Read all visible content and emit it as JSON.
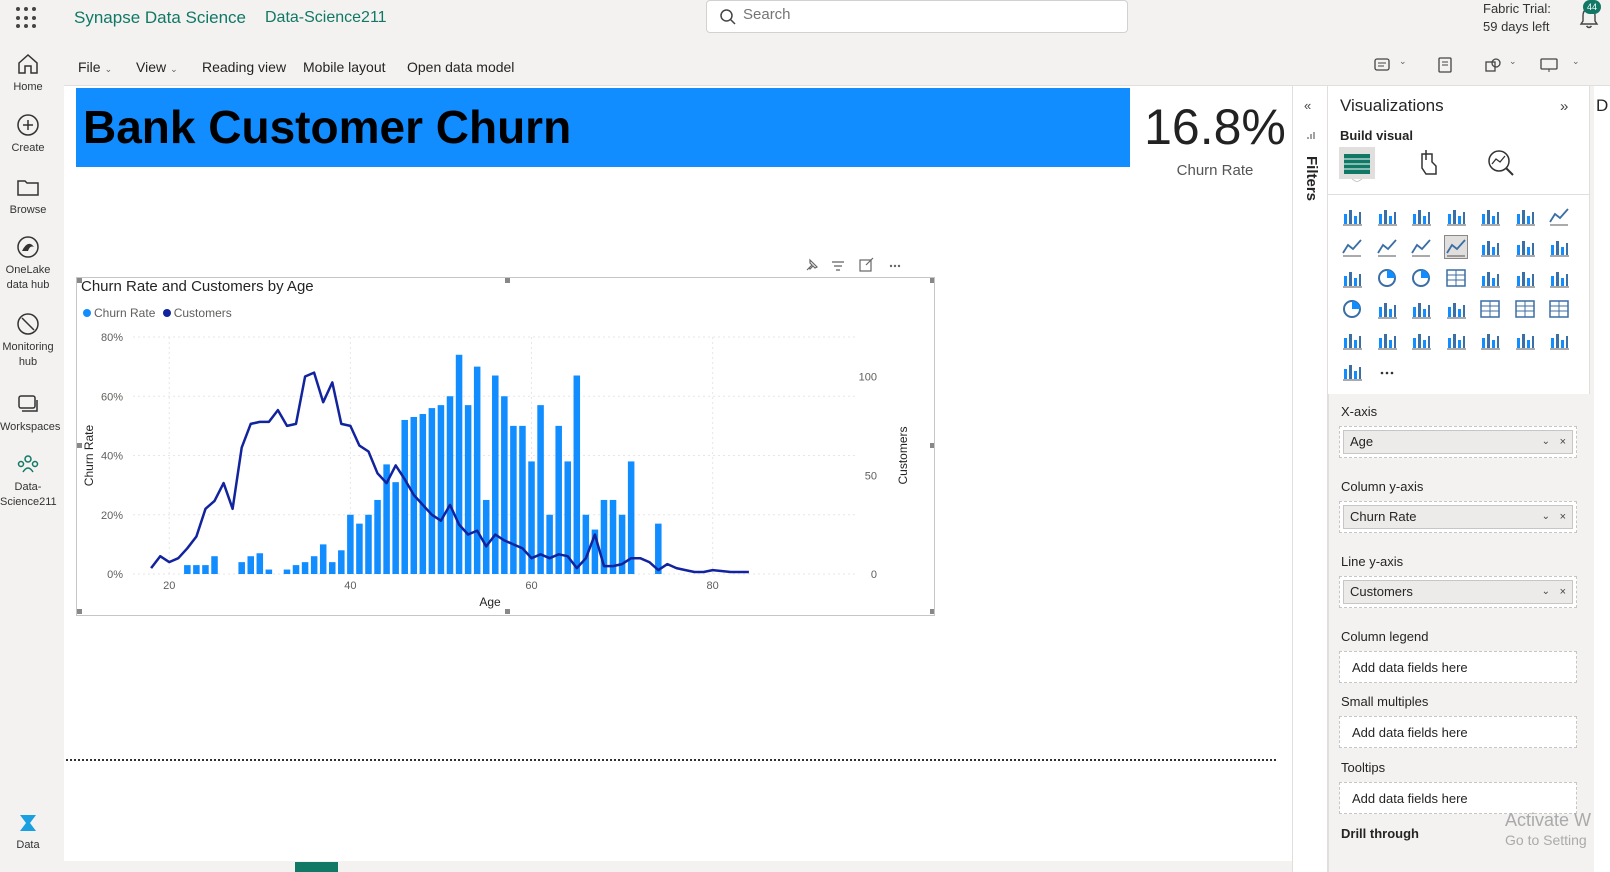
{
  "header": {
    "app_title": "Synapse Data Science",
    "workspace": "Data-Science211",
    "search_placeholder": "Search",
    "trial_line1": "Fabric Trial:",
    "trial_line2": "59 days left",
    "notification_count": "44"
  },
  "leftnav": {
    "items": [
      {
        "label": "Home",
        "icon": "home-icon"
      },
      {
        "label": "Create",
        "icon": "plus-circle-icon"
      },
      {
        "label": "Browse",
        "icon": "folder-icon"
      },
      {
        "label": "OneLake data hub",
        "icon": "onelake-icon"
      },
      {
        "label": "Monitoring hub",
        "icon": "monitor-icon"
      },
      {
        "label": "Workspaces",
        "icon": "workspaces-icon"
      },
      {
        "label": "Data-Science211",
        "icon": "workspace-people-icon"
      }
    ],
    "bottom_label": "Data"
  },
  "ribbon": {
    "file": "File",
    "view": "View",
    "reading_view": "Reading view",
    "mobile_layout": "Mobile layout",
    "open_data_model": "Open data model"
  },
  "report": {
    "banner_title": "Bank Customer Churn",
    "kpi_value": "16.8%",
    "kpi_label": "Churn Rate",
    "banner_color": "#118dff"
  },
  "chart_data": {
    "type": "bar+line",
    "title": "Churn Rate and Customers by Age",
    "xlabel": "Age",
    "ylabel": "Churn Rate",
    "y2label": "Customers",
    "legend": [
      {
        "name": "Churn Rate",
        "color": "#118dff"
      },
      {
        "name": "Customers",
        "color": "#12239e"
      }
    ],
    "legend_position": "top-left",
    "x_ticks": [
      "20",
      "40",
      "60",
      "80"
    ],
    "y_ticks": [
      "0%",
      "20%",
      "40%",
      "60%",
      "80%"
    ],
    "y2_ticks": [
      "0",
      "50",
      "100"
    ],
    "xlim": [
      16,
      86
    ],
    "ylim": [
      0,
      0.8
    ],
    "y2lim": [
      0,
      120
    ],
    "grid": true,
    "bars": [
      {
        "x": 22,
        "y": 0.03
      },
      {
        "x": 23,
        "y": 0.03
      },
      {
        "x": 24,
        "y": 0.03
      },
      {
        "x": 25,
        "y": 0.06
      },
      {
        "x": 28,
        "y": 0.04
      },
      {
        "x": 29,
        "y": 0.06
      },
      {
        "x": 30,
        "y": 0.07
      },
      {
        "x": 31,
        "y": 0.015
      },
      {
        "x": 33,
        "y": 0.015
      },
      {
        "x": 34,
        "y": 0.03
      },
      {
        "x": 35,
        "y": 0.04
      },
      {
        "x": 36,
        "y": 0.06
      },
      {
        "x": 37,
        "y": 0.1
      },
      {
        "x": 38,
        "y": 0.04
      },
      {
        "x": 39,
        "y": 0.08
      },
      {
        "x": 40,
        "y": 0.2
      },
      {
        "x": 41,
        "y": 0.17
      },
      {
        "x": 42,
        "y": 0.2
      },
      {
        "x": 43,
        "y": 0.25
      },
      {
        "x": 44,
        "y": 0.37
      },
      {
        "x": 45,
        "y": 0.31
      },
      {
        "x": 46,
        "y": 0.52
      },
      {
        "x": 47,
        "y": 0.53
      },
      {
        "x": 48,
        "y": 0.54
      },
      {
        "x": 49,
        "y": 0.56
      },
      {
        "x": 50,
        "y": 0.57
      },
      {
        "x": 51,
        "y": 0.6
      },
      {
        "x": 52,
        "y": 0.74
      },
      {
        "x": 53,
        "y": 0.57
      },
      {
        "x": 54,
        "y": 0.7
      },
      {
        "x": 55,
        "y": 0.25
      },
      {
        "x": 56,
        "y": 0.67
      },
      {
        "x": 57,
        "y": 0.6
      },
      {
        "x": 58,
        "y": 0.5
      },
      {
        "x": 59,
        "y": 0.5
      },
      {
        "x": 60,
        "y": 0.38
      },
      {
        "x": 61,
        "y": 0.57
      },
      {
        "x": 62,
        "y": 0.2
      },
      {
        "x": 63,
        "y": 0.5
      },
      {
        "x": 64,
        "y": 0.38
      },
      {
        "x": 65,
        "y": 0.67
      },
      {
        "x": 66,
        "y": 0.2
      },
      {
        "x": 67,
        "y": 0.15
      },
      {
        "x": 68,
        "y": 0.25
      },
      {
        "x": 69,
        "y": 0.25
      },
      {
        "x": 70,
        "y": 0.2
      },
      {
        "x": 71,
        "y": 0.38
      },
      {
        "x": 74,
        "y": 0.17
      }
    ],
    "line": [
      {
        "x": 18,
        "y": 3
      },
      {
        "x": 19,
        "y": 9
      },
      {
        "x": 20,
        "y": 6
      },
      {
        "x": 21,
        "y": 8
      },
      {
        "x": 22,
        "y": 13
      },
      {
        "x": 23,
        "y": 19
      },
      {
        "x": 24,
        "y": 33
      },
      {
        "x": 25,
        "y": 37
      },
      {
        "x": 26,
        "y": 46
      },
      {
        "x": 27,
        "y": 33
      },
      {
        "x": 28,
        "y": 64
      },
      {
        "x": 29,
        "y": 76
      },
      {
        "x": 30,
        "y": 77
      },
      {
        "x": 31,
        "y": 77
      },
      {
        "x": 32,
        "y": 83
      },
      {
        "x": 33,
        "y": 75
      },
      {
        "x": 34,
        "y": 76
      },
      {
        "x": 35,
        "y": 100
      },
      {
        "x": 36,
        "y": 102
      },
      {
        "x": 37,
        "y": 87
      },
      {
        "x": 38,
        "y": 97
      },
      {
        "x": 39,
        "y": 76
      },
      {
        "x": 40,
        "y": 75
      },
      {
        "x": 41,
        "y": 65
      },
      {
        "x": 42,
        "y": 62
      },
      {
        "x": 43,
        "y": 51
      },
      {
        "x": 44,
        "y": 46
      },
      {
        "x": 45,
        "y": 55
      },
      {
        "x": 46,
        "y": 48
      },
      {
        "x": 47,
        "y": 40
      },
      {
        "x": 48,
        "y": 35
      },
      {
        "x": 49,
        "y": 30
      },
      {
        "x": 50,
        "y": 27
      },
      {
        "x": 51,
        "y": 35
      },
      {
        "x": 52,
        "y": 25
      },
      {
        "x": 53,
        "y": 20
      },
      {
        "x": 54,
        "y": 22
      },
      {
        "x": 55,
        "y": 14
      },
      {
        "x": 56,
        "y": 20
      },
      {
        "x": 57,
        "y": 17
      },
      {
        "x": 58,
        "y": 15
      },
      {
        "x": 59,
        "y": 13
      },
      {
        "x": 60,
        "y": 8
      },
      {
        "x": 61,
        "y": 10
      },
      {
        "x": 62,
        "y": 8
      },
      {
        "x": 63,
        "y": 10
      },
      {
        "x": 64,
        "y": 9
      },
      {
        "x": 65,
        "y": 3
      },
      {
        "x": 66,
        "y": 8
      },
      {
        "x": 67,
        "y": 20
      },
      {
        "x": 68,
        "y": 4
      },
      {
        "x": 69,
        "y": 4
      },
      {
        "x": 70,
        "y": 5
      },
      {
        "x": 71,
        "y": 8
      },
      {
        "x": 72,
        "y": 8
      },
      {
        "x": 73,
        "y": 6
      },
      {
        "x": 74,
        "y": 2
      },
      {
        "x": 75,
        "y": 5
      },
      {
        "x": 76,
        "y": 3
      },
      {
        "x": 77,
        "y": 2
      },
      {
        "x": 78,
        "y": 1
      },
      {
        "x": 79,
        "y": 1
      },
      {
        "x": 80,
        "y": 2
      },
      {
        "x": 82,
        "y": 1
      },
      {
        "x": 84,
        "y": 1
      }
    ]
  },
  "filters": {
    "label": "Filters"
  },
  "visualizations": {
    "title": "Visualizations",
    "build_visual": "Build visual",
    "fields": [
      {
        "label": "X-axis",
        "value": "Age"
      },
      {
        "label": "Column y-axis",
        "value": "Churn Rate"
      },
      {
        "label": "Line y-axis",
        "value": "Customers"
      }
    ],
    "empty_wells": [
      {
        "label": "Column legend",
        "placeholder": "Add data fields here"
      },
      {
        "label": "Small multiples",
        "placeholder": "Add data fields here"
      },
      {
        "label": "Tooltips",
        "placeholder": "Add data fields here"
      }
    ],
    "drill_through": "Drill through",
    "more": "..."
  },
  "data_pane": {
    "label": "D"
  },
  "watermark": {
    "line1": "Activate W",
    "line2": "Go to Setting"
  }
}
